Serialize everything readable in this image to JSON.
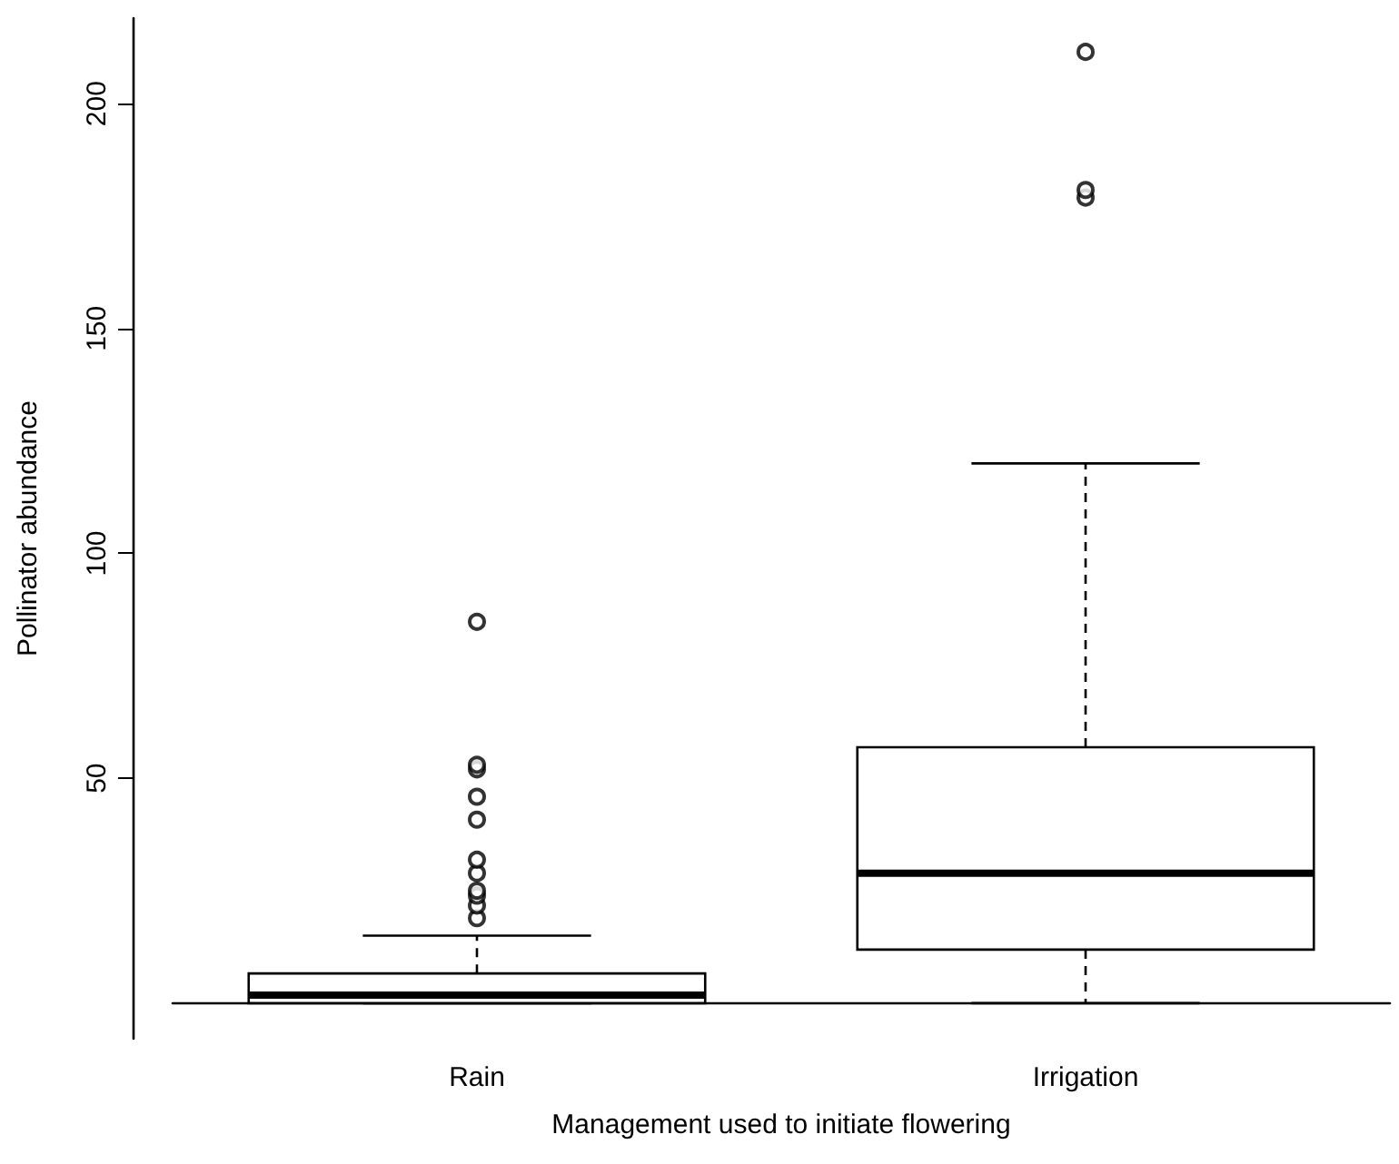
{
  "chart_data": {
    "type": "box",
    "xlabel": "Management used to initiate flowering",
    "ylabel": "Pollinator abundance",
    "categories": [
      "Rain",
      "Irrigation"
    ],
    "boxes": [
      {
        "low": 0,
        "q1": 0,
        "median": 1.8,
        "q3": 6.6,
        "high": 15,
        "outliers": [
          18.9,
          21.7,
          23.9,
          25,
          28.9,
          31.9,
          40.8,
          45.9,
          52,
          53,
          84.8
        ]
      },
      {
        "low": 0,
        "q1": 11.9,
        "median": 28.9,
        "q3": 56.9,
        "high": 120,
        "outliers": [
          179.1,
          180.8,
          211.5
        ]
      }
    ],
    "color": "#000000",
    "ylim": [
      -7.9,
      219
    ],
    "yticks": [
      50,
      100,
      150,
      200
    ],
    "grid": false,
    "marker": "circle"
  }
}
